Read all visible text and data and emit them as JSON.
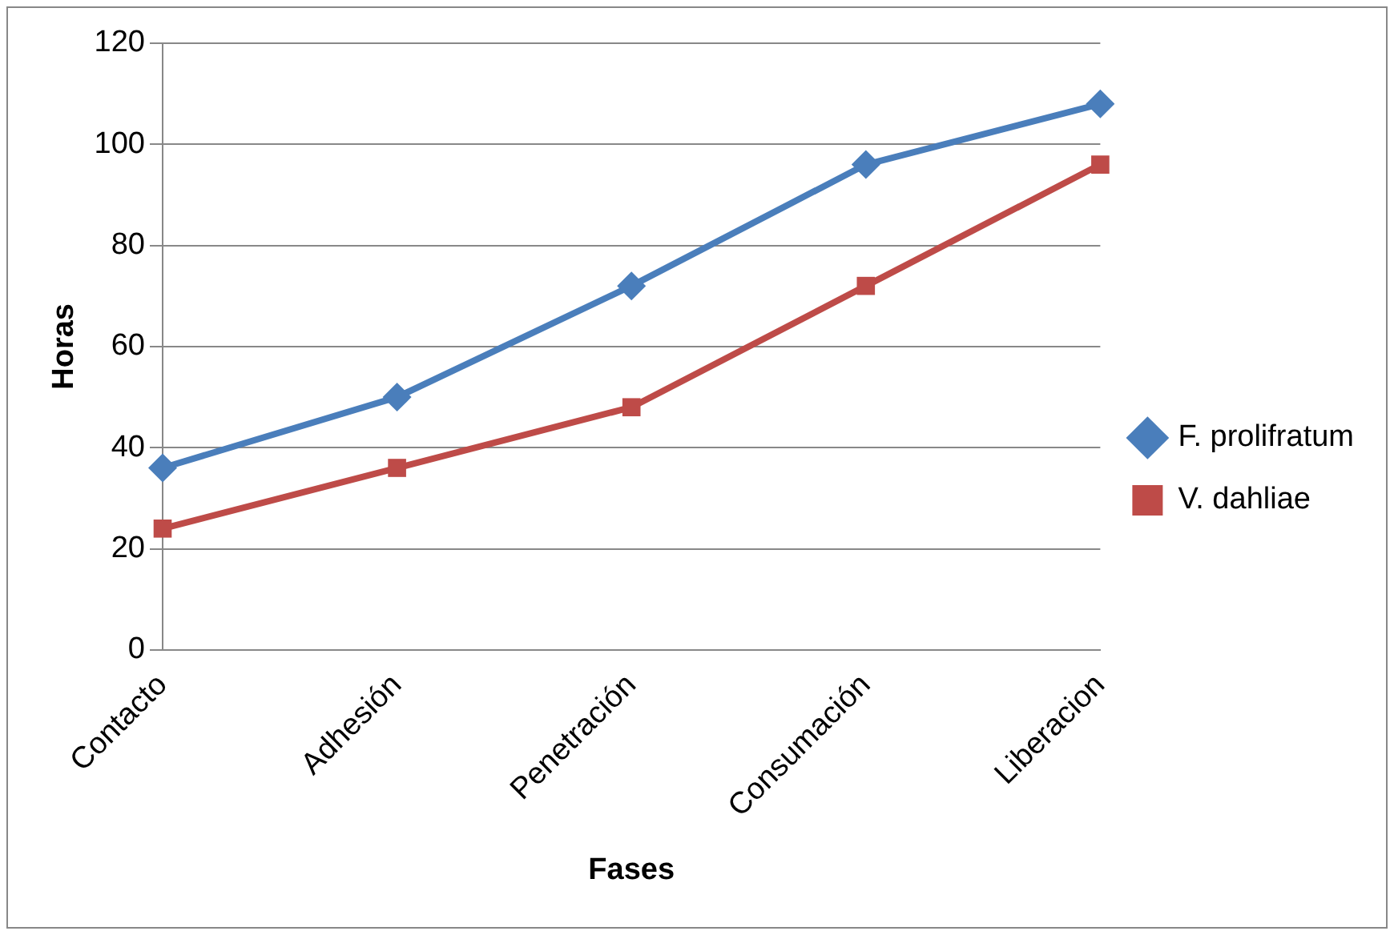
{
  "chart_data": {
    "type": "line",
    "xlabel": "Fases",
    "ylabel": "Horas",
    "categories": [
      "Contacto",
      "Adhesión",
      "Penetración",
      "Consumación",
      "Liberacion"
    ],
    "series": [
      {
        "name": "F. prolifratum",
        "color": "#4a7ebb",
        "marker": "diamond",
        "values": [
          36,
          50,
          72,
          96,
          108
        ]
      },
      {
        "name": "V. dahliae",
        "color": "#be4b48",
        "marker": "square",
        "values": [
          24,
          36,
          48,
          72,
          96
        ]
      }
    ],
    "ylim": [
      0,
      120
    ],
    "yticks": [
      0,
      20,
      40,
      60,
      80,
      100,
      120
    ],
    "grid": "y",
    "legend": "right"
  }
}
